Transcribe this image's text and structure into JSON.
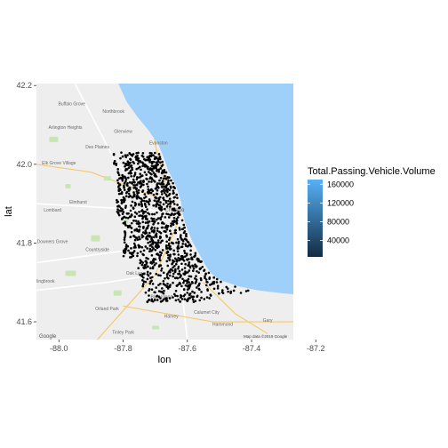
{
  "chart_data": {
    "type": "scatter",
    "xlabel": "lon",
    "ylabel": "lat",
    "xlim": [
      -88.07,
      -87.27
    ],
    "ylim": [
      41.555,
      42.205
    ],
    "xticks": [
      -88.0,
      -87.8,
      -87.6,
      -87.4,
      -87.2
    ],
    "xtick_labels": [
      "-88.0",
      "-87.8",
      "-87.6",
      "-87.4",
      "-87.2"
    ],
    "yticks": [
      41.6,
      41.8,
      42.0,
      42.2
    ],
    "ytick_labels": [
      "41.6",
      "41.8",
      "42.0",
      "42.2"
    ],
    "grid": false,
    "point_color": "#000000",
    "legend": {
      "title": "Total.Passing.Vehicle.Volume",
      "placement": "right",
      "type": "colorbar",
      "low_color": "#132B43",
      "high_color": "#56B1F7",
      "range": [
        5000,
        170000
      ],
      "breaks": [
        40000,
        80000,
        120000,
        160000
      ],
      "break_labels": [
        "40000",
        "80000",
        "120000",
        "160000"
      ]
    },
    "point_extent": {
      "lon": [
        -87.85,
        -87.53
      ],
      "lat": [
        41.65,
        42.03
      ]
    }
  },
  "basemap": {
    "water_color": "#9fd0f9",
    "land_color": "#eeeeee",
    "attribution": "Map data ©2019 Google",
    "logo": "Google",
    "place_labels": [
      {
        "name": "Buffalo Grove",
        "lon": -87.96,
        "lat": 42.15
      },
      {
        "name": "Northbrook",
        "lon": -87.83,
        "lat": 42.13
      },
      {
        "name": "Arlington Heights",
        "lon": -87.98,
        "lat": 42.09
      },
      {
        "name": "Glenview",
        "lon": -87.8,
        "lat": 42.08
      },
      {
        "name": "Evanston",
        "lon": -87.69,
        "lat": 42.05
      },
      {
        "name": "Des Plaines",
        "lon": -87.88,
        "lat": 42.04
      },
      {
        "name": "Elk Grove Village",
        "lon": -88.0,
        "lat": 42.0
      },
      {
        "name": "Chicago",
        "lon": -87.64,
        "lat": 41.88
      },
      {
        "name": "Elmhurst",
        "lon": -87.94,
        "lat": 41.9
      },
      {
        "name": "Lombard",
        "lon": -88.02,
        "lat": 41.88
      },
      {
        "name": "Downers Grove",
        "lon": -88.02,
        "lat": 41.8
      },
      {
        "name": "Countryside",
        "lon": -87.88,
        "lat": 41.78
      },
      {
        "name": "Bolingbrook",
        "lon": -88.05,
        "lat": 41.7
      },
      {
        "name": "Oak Lawn",
        "lon": -87.76,
        "lat": 41.72
      },
      {
        "name": "Orland Park",
        "lon": -87.85,
        "lat": 41.63
      },
      {
        "name": "Blue Island",
        "lon": -87.68,
        "lat": 41.66
      },
      {
        "name": "Harvey",
        "lon": -87.65,
        "lat": 41.61
      },
      {
        "name": "Calumet City",
        "lon": -87.54,
        "lat": 41.62
      },
      {
        "name": "Hammond",
        "lon": -87.49,
        "lat": 41.59
      },
      {
        "name": "Gary",
        "lon": -87.35,
        "lat": 41.6
      },
      {
        "name": "Tinley Park",
        "lon": -87.8,
        "lat": 41.57
      }
    ]
  }
}
